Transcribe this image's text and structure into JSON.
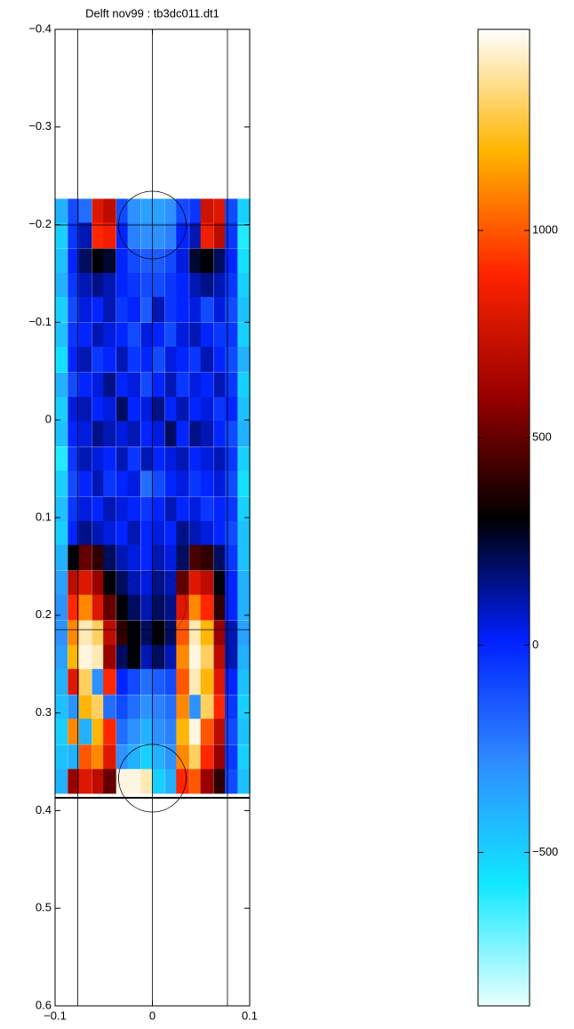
{
  "chart_data": {
    "type": "heatmap",
    "title": "Delft nov99 : tb3dc011.dt1",
    "xlim": [
      -0.1,
      0.1
    ],
    "xticks": [
      {
        "value": -0.1,
        "label": "−0.1"
      },
      0,
      0.1
    ],
    "ylim": [
      -0.4,
      0.6
    ],
    "yticks": [
      {
        "value": -0.4,
        "label": "−0.4"
      },
      {
        "value": -0.3,
        "label": "−0.3"
      },
      {
        "value": -0.2,
        "label": "−0.2"
      },
      {
        "value": -0.1,
        "label": "−0.1"
      },
      0,
      0.1,
      0.2,
      0.3,
      0.4,
      0.5,
      0.6
    ],
    "y_reversed": true,
    "clim": [
      -870,
      1485
    ],
    "cticks": [
      {
        "value": -500,
        "label": "−500"
      },
      0,
      500,
      1000
    ],
    "colormap": [
      "#eaffff",
      "#10e8ff",
      "#2f8cff",
      "#0020ff",
      "#000000",
      "#9a0000",
      "#ff2400",
      "#ffb400",
      "#ffffff"
    ],
    "x": [
      -0.094,
      -0.081,
      -0.069,
      -0.056,
      -0.044,
      -0.031,
      -0.019,
      -0.006,
      0.006,
      0.019,
      0.031,
      0.044,
      0.056,
      0.069,
      0.081,
      0.094
    ],
    "y": [
      -0.214,
      -0.189,
      -0.163,
      -0.138,
      -0.113,
      -0.087,
      -0.062,
      -0.036,
      -0.011,
      0.014,
      0.04,
      0.065,
      0.091,
      0.116,
      0.141,
      0.167,
      0.192,
      0.218,
      0.243,
      0.268,
      0.294,
      0.319,
      0.345,
      0.37
    ],
    "z": [
      [
        -400,
        -100,
        -200,
        800,
        700,
        -100,
        -300,
        -350,
        -350,
        -300,
        -100,
        -50,
        750,
        800,
        -100,
        -500
      ],
      [
        -500,
        -50,
        100,
        900,
        850,
        0,
        -250,
        -300,
        -300,
        -250,
        0,
        100,
        850,
        700,
        -50,
        -600
      ],
      [
        -450,
        0,
        200,
        300,
        250,
        0,
        -100,
        -150,
        -150,
        -100,
        50,
        250,
        300,
        200,
        0,
        -550
      ],
      [
        -400,
        -50,
        100,
        150,
        100,
        0,
        -50,
        -100,
        -100,
        -50,
        0,
        100,
        150,
        100,
        -50,
        -500
      ],
      [
        -500,
        -100,
        50,
        0,
        100,
        -50,
        0,
        -150,
        100,
        -50,
        0,
        50,
        -100,
        50,
        -100,
        -450
      ],
      [
        -450,
        -50,
        0,
        100,
        50,
        0,
        -100,
        50,
        0,
        -100,
        50,
        100,
        0,
        -50,
        -50,
        -500
      ],
      [
        -550,
        0,
        100,
        -50,
        0,
        100,
        -50,
        0,
        -100,
        50,
        0,
        -50,
        100,
        0,
        -100,
        -400
      ],
      [
        -400,
        -100,
        0,
        50,
        150,
        0,
        50,
        -100,
        0,
        100,
        -50,
        50,
        0,
        100,
        -50,
        -500
      ],
      [
        -500,
        50,
        100,
        0,
        50,
        200,
        0,
        50,
        150,
        0,
        100,
        0,
        50,
        -50,
        0,
        -450
      ],
      [
        -450,
        0,
        50,
        150,
        100,
        50,
        100,
        0,
        50,
        200,
        0,
        150,
        100,
        0,
        -100,
        -400
      ],
      [
        -600,
        -50,
        100,
        50,
        0,
        100,
        -50,
        100,
        0,
        50,
        100,
        0,
        50,
        100,
        -50,
        -500
      ],
      [
        -500,
        -100,
        0,
        100,
        -50,
        0,
        50,
        -200,
        -100,
        0,
        50,
        -50,
        0,
        50,
        -100,
        -550
      ],
      [
        -450,
        -50,
        50,
        0,
        100,
        50,
        0,
        -50,
        0,
        100,
        0,
        50,
        -50,
        0,
        -50,
        -500
      ],
      [
        -500,
        0,
        150,
        100,
        50,
        0,
        100,
        0,
        50,
        0,
        150,
        100,
        50,
        0,
        -100,
        -450
      ],
      [
        -400,
        300,
        500,
        400,
        200,
        100,
        50,
        0,
        100,
        50,
        200,
        450,
        400,
        200,
        -50,
        -450
      ],
      [
        -350,
        700,
        800,
        600,
        300,
        200,
        100,
        50,
        150,
        100,
        500,
        800,
        700,
        300,
        0,
        -400
      ],
      [
        -300,
        900,
        1100,
        800,
        500,
        300,
        200,
        100,
        200,
        150,
        800,
        1100,
        900,
        400,
        0,
        -400
      ],
      [
        -300,
        1100,
        1400,
        1300,
        700,
        400,
        300,
        200,
        300,
        200,
        1000,
        1400,
        1200,
        600,
        100,
        -350
      ],
      [
        -350,
        1200,
        1450,
        1400,
        600,
        200,
        300,
        100,
        200,
        100,
        1100,
        1450,
        1300,
        700,
        100,
        -400
      ],
      [
        -400,
        800,
        1300,
        -300,
        900,
        0,
        -100,
        -200,
        -150,
        -100,
        1000,
        1400,
        1200,
        800,
        0,
        -450
      ],
      [
        -450,
        -300,
        1200,
        1300,
        -200,
        -100,
        -200,
        -300,
        -250,
        -200,
        1100,
        -300,
        1300,
        900,
        -50,
        -500
      ],
      [
        -500,
        1100,
        -400,
        1200,
        900,
        -200,
        -300,
        -400,
        -300,
        -250,
        1200,
        1450,
        1000,
        700,
        -100,
        -450
      ],
      [
        -450,
        -400,
        1000,
        1100,
        800,
        -300,
        -400,
        -500,
        -400,
        -300,
        1100,
        1300,
        900,
        600,
        -50,
        -500
      ],
      [
        -400,
        600,
        800,
        700,
        500,
        1450,
        1450,
        1400,
        -500,
        -400,
        900,
        1000,
        600,
        400,
        -100,
        -450
      ]
    ]
  }
}
